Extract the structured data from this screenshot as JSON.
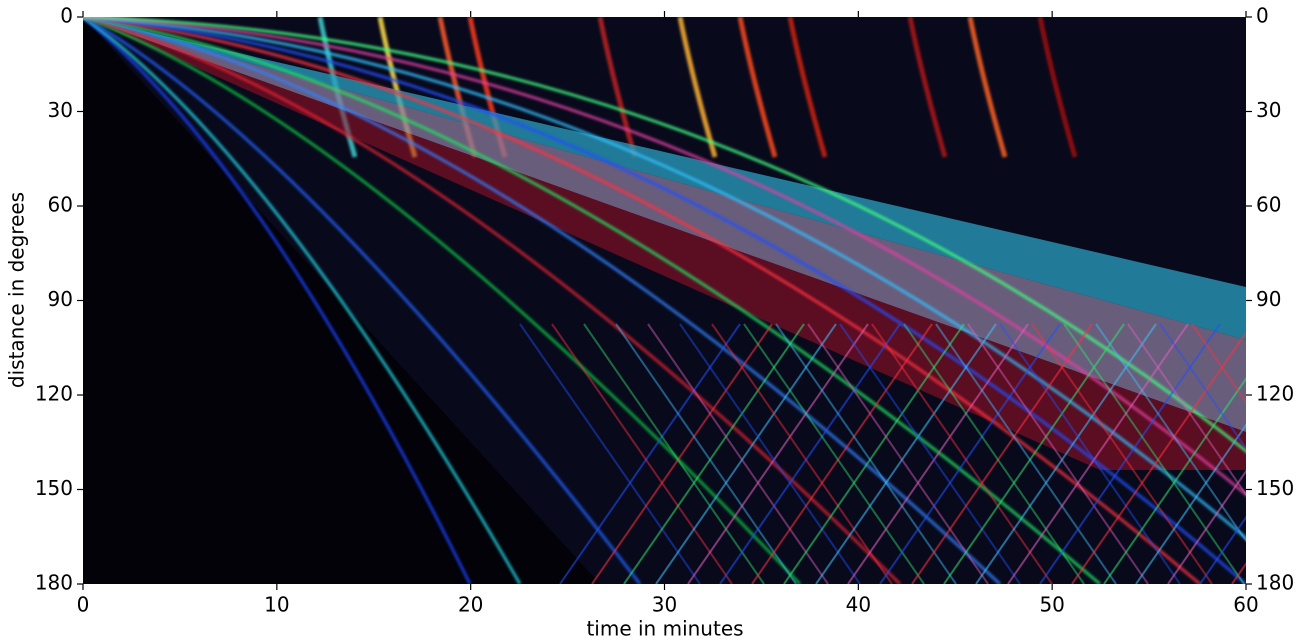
{
  "chart_data": {
    "type": "image",
    "x_label": "time in minutes",
    "y_label": "distance in degrees",
    "xlim": [
      0,
      60
    ],
    "xticks": [
      0,
      10,
      20,
      30,
      40,
      50,
      60
    ],
    "ylim": [
      180,
      0
    ],
    "yticks": [
      0,
      30,
      60,
      90,
      120,
      150,
      180
    ],
    "right_axis": true
  }
}
